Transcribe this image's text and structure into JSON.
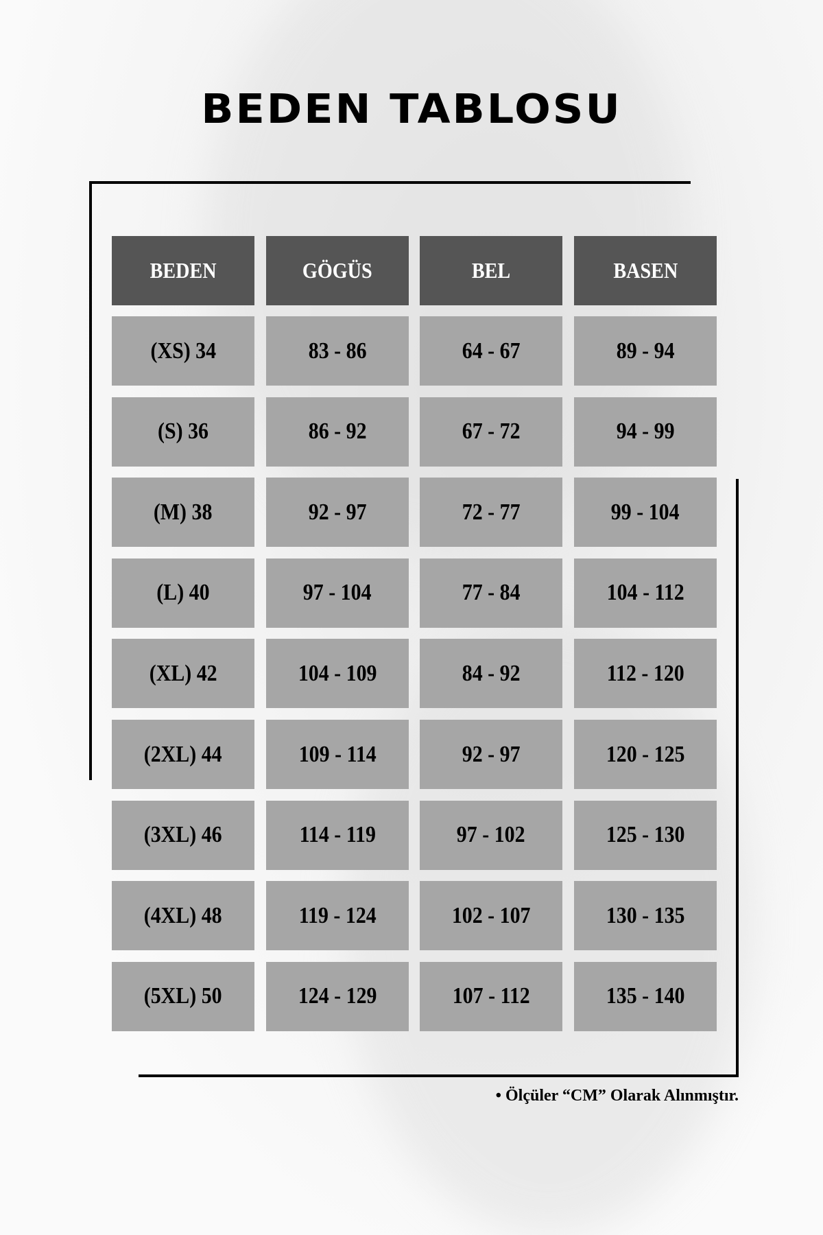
{
  "title": "BEDEN TABLOSU",
  "table": {
    "headers": [
      "BEDEN",
      "GÖGÜS",
      "BEL",
      "BASEN"
    ],
    "rows": [
      [
        "(XS) 34",
        "83 - 86",
        "64 - 67",
        "89 - 94"
      ],
      [
        "(S) 36",
        "86 - 92",
        "67 - 72",
        "94 - 99"
      ],
      [
        "(M) 38",
        "92 - 97",
        "72 - 77",
        "99 - 104"
      ],
      [
        "(L) 40",
        "97 - 104",
        "77 - 84",
        "104 - 112"
      ],
      [
        "(XL) 42",
        "104 - 109",
        "84 - 92",
        "112 - 120"
      ],
      [
        "(2XL) 44",
        "109 - 114",
        "92 - 97",
        "120 - 125"
      ],
      [
        "(3XL) 46",
        "114 - 119",
        "97 - 102",
        "125 - 130"
      ],
      [
        "(4XL) 48",
        "119 - 124",
        "102 - 107",
        "130 - 135"
      ],
      [
        "(5XL) 50",
        "124 - 129",
        "107 - 112",
        "135 - 140"
      ]
    ]
  },
  "footnote": "• Ölçüler “CM” Olarak Alınmıştır.",
  "colors": {
    "header_bg": "#555555",
    "cell_bg": "#a6a6a6",
    "line": "#000000"
  }
}
